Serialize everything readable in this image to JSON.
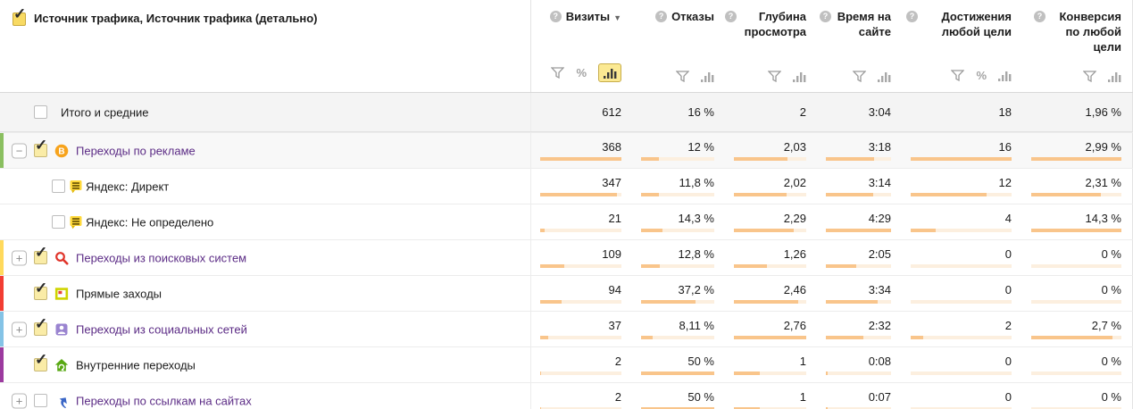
{
  "colors": {
    "bar_fill": "#f9c58b",
    "bar_track": "#fcefdf",
    "link": "#5b2b85",
    "chart_button_bg": "#fbe993"
  },
  "header": {
    "title": "Источник трафика, Источник трафика (детально)",
    "title_checkbox_checked": true,
    "columns": [
      {
        "label": "Визиты",
        "sorted": true,
        "sort_arrow": "▼",
        "tools": [
          "filter",
          "percent",
          "chart"
        ],
        "chart_active": true
      },
      {
        "label": "Отказы",
        "sorted": false,
        "tools": [
          "filter",
          "chart"
        ],
        "chart_active": false
      },
      {
        "label": "Глубина просмотра",
        "sorted": false,
        "tools": [
          "filter",
          "chart"
        ],
        "chart_active": false
      },
      {
        "label": "Время на сайте",
        "sorted": false,
        "tools": [
          "filter",
          "chart"
        ],
        "chart_active": false
      },
      {
        "label": "Достижения любой цели",
        "sorted": false,
        "tools": [
          "filter",
          "percent",
          "chart"
        ],
        "chart_active": false
      },
      {
        "label": "Конверсия по любой цели",
        "sorted": false,
        "tools": [
          "filter",
          "chart"
        ],
        "chart_active": false
      }
    ]
  },
  "rows": [
    {
      "label": "Итого и средние",
      "kind": "summary",
      "checked": false,
      "level": 0,
      "values": [
        "612",
        "16 %",
        "2",
        "3:04",
        "18",
        "1,96 %"
      ],
      "bars": [
        null,
        null,
        null,
        null,
        null,
        null
      ]
    },
    {
      "label": "Переходы по рекламе",
      "kind": "parent",
      "tinted": true,
      "stripe": "#8abf60",
      "expander": "−",
      "checked": true,
      "icon": "ad-icon",
      "link": true,
      "level": 0,
      "values": [
        "368",
        "12 %",
        "2,03",
        "3:18",
        "16",
        "2,99 %"
      ],
      "bars": [
        100,
        24,
        74,
        74,
        100,
        100
      ]
    },
    {
      "label": "Яндекс: Директ",
      "kind": "child",
      "checked": false,
      "icon": "yandex-direct-icon",
      "link": false,
      "level": 1,
      "values": [
        "347",
        "11,8 %",
        "2,02",
        "3:14",
        "12",
        "2,31 %"
      ],
      "bars": [
        94,
        24,
        73,
        72,
        75,
        77
      ]
    },
    {
      "label": "Яндекс: Не определено",
      "kind": "child",
      "checked": false,
      "icon": "yandex-direct-icon",
      "link": false,
      "level": 1,
      "values": [
        "21",
        "14,3 %",
        "2,29",
        "4:29",
        "4",
        "14,3 %"
      ],
      "bars": [
        6,
        29,
        83,
        100,
        25,
        100
      ]
    },
    {
      "label": "Переходы из поисковых систем",
      "kind": "parent",
      "stripe": "#ffd95c",
      "expander": "+",
      "checked": true,
      "icon": "search-icon",
      "link": true,
      "level": 0,
      "values": [
        "109",
        "12,8 %",
        "1,26",
        "2:05",
        "0",
        "0 %"
      ],
      "bars": [
        30,
        26,
        46,
        46,
        0,
        0
      ]
    },
    {
      "label": "Прямые заходы",
      "kind": "parent",
      "stripe": "#f23d33",
      "checked": true,
      "icon": "direct-visit-icon",
      "link": false,
      "level": 0,
      "values": [
        "94",
        "37,2 %",
        "2,46",
        "3:34",
        "0",
        "0 %"
      ],
      "bars": [
        26,
        74,
        89,
        80,
        0,
        0
      ]
    },
    {
      "label": "Переходы из социальных сетей",
      "kind": "parent",
      "stripe": "#84c3e6",
      "expander": "+",
      "checked": true,
      "icon": "social-icon",
      "link": true,
      "level": 0,
      "values": [
        "37",
        "8,11 %",
        "2,76",
        "2:32",
        "2",
        "2,7 %"
      ],
      "bars": [
        10,
        16,
        100,
        57,
        12,
        90
      ]
    },
    {
      "label": "Внутренние переходы",
      "kind": "parent",
      "stripe": "#9c3a9f",
      "checked": true,
      "icon": "internal-icon",
      "link": false,
      "level": 0,
      "values": [
        "2",
        "50 %",
        "1",
        "0:08",
        "0",
        "0 %"
      ],
      "bars": [
        1.5,
        100,
        36,
        3,
        0,
        0
      ]
    },
    {
      "label": "Переходы по ссылкам на сайтах",
      "kind": "parent",
      "expander": "+",
      "checked": false,
      "icon": "external-link-icon",
      "link": true,
      "level": 0,
      "values": [
        "2",
        "50 %",
        "1",
        "0:07",
        "0",
        "0 %"
      ],
      "bars": [
        1.5,
        100,
        36,
        2.5,
        0,
        0
      ]
    }
  ]
}
